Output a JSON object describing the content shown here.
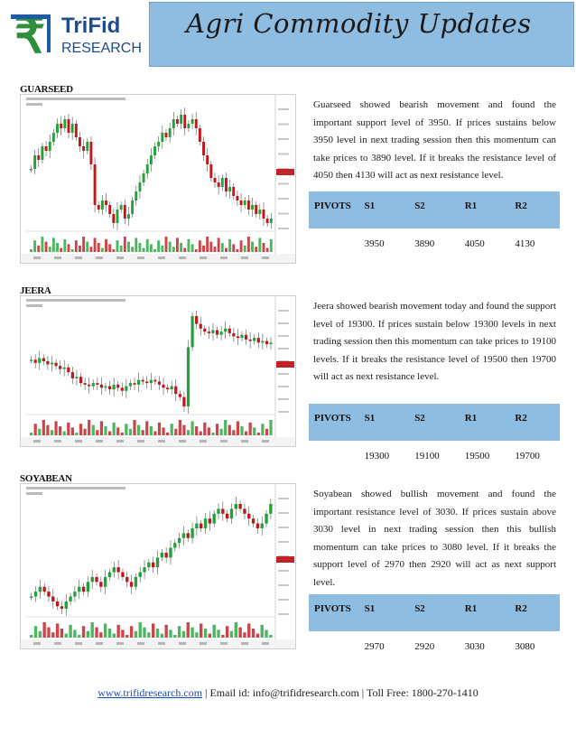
{
  "header": {
    "logo_name": "TriFid",
    "logo_sub": "RESEARCH",
    "logo_symbol": "₹",
    "title": "Agri Commodity Updates"
  },
  "colors": {
    "banner": "#8fbde2",
    "up_candle": "#22a33a",
    "down_candle": "#c0161c",
    "logo_green": "#2f8f3a"
  },
  "sections": [
    {
      "label": "GUARSEED",
      "description": "Guarseed showed bearish movement and found the important support level of 3950. If prices sustains below 3950 level in next trading session then this momentum can take prices to 3890 level. If it breaks the resistance level of 4050 then 4130 will act as next resistance level.",
      "pivots": {
        "headers": [
          "PIVOTS",
          "S1",
          "S2",
          "R1",
          "R2"
        ],
        "values": [
          "",
          "3950",
          "3890",
          "4050",
          "4130"
        ]
      },
      "trend": [
        3950,
        3980,
        3970,
        4000,
        3990,
        4010,
        4030,
        4050,
        4040,
        4060,
        4030,
        4050,
        4020,
        4000,
        3990,
        4010,
        3960,
        3870,
        3860,
        3880,
        3870,
        3850,
        3830,
        3860,
        3870,
        3840,
        3850,
        3880,
        3900,
        3920,
        3940,
        3960,
        3980,
        4000,
        4010,
        4030,
        4020,
        4040,
        4060,
        4050,
        4070,
        4040,
        4050,
        4060,
        4040,
        4010,
        3980,
        3960,
        3930,
        3920,
        3910,
        3930,
        3900,
        3910,
        3890,
        3880,
        3870,
        3880,
        3860,
        3870,
        3850,
        3860,
        3840,
        3830,
        3840
      ]
    },
    {
      "label": "JEERA",
      "description": "Jeera showed bearish movement today and found the support level of 19300. If prices sustain below 19300 levels in next trading session then this momentum can take prices to 19100 levels. If it breaks the resistance level of 19500 then 19700 will act as next resistance level.",
      "pivots": {
        "headers": [
          "PIVOTS",
          "S1",
          "S2",
          "R1",
          "R2"
        ],
        "values": [
          "",
          "19300",
          "19100",
          "19500",
          "19700"
        ]
      },
      "trend": [
        19420,
        19400,
        19430,
        19410,
        19390,
        19400,
        19380,
        19360,
        19370,
        19340,
        19300,
        19310,
        19270,
        19260,
        19250,
        19270,
        19260,
        19240,
        19250,
        19230,
        19260,
        19240,
        19220,
        19250,
        19270,
        19260,
        19290,
        19280,
        19270,
        19290,
        19280,
        19260,
        19240,
        19230,
        19250,
        19200,
        19180,
        19120,
        19500,
        19700,
        19650,
        19620,
        19600,
        19590,
        19610,
        19580,
        19600,
        19620,
        19590,
        19570,
        19560,
        19580,
        19550,
        19540,
        19560,
        19530,
        19540,
        19520,
        19530
      ]
    },
    {
      "label": "SOYABEAN",
      "description": "Soyabean showed bullish movement and found the important resistance level of 3030. If prices sustain above 3030 level in next trading session then this bullish momentum can take prices to 3080 level. If it breaks the support level of 2970 then 2920 will act as next support level.",
      "pivots": {
        "headers": [
          "PIVOTS",
          "S1",
          "S2",
          "R1",
          "R2"
        ],
        "values": [
          "",
          "2970",
          "2920",
          "3030",
          "3080"
        ]
      },
      "trend": [
        2860,
        2870,
        2880,
        2870,
        2860,
        2850,
        2840,
        2835,
        2850,
        2860,
        2870,
        2880,
        2870,
        2890,
        2900,
        2890,
        2880,
        2900,
        2910,
        2920,
        2910,
        2900,
        2890,
        2880,
        2900,
        2910,
        2920,
        2930,
        2920,
        2940,
        2950,
        2940,
        2960,
        2970,
        2980,
        2990,
        2980,
        3000,
        3010,
        3000,
        3020,
        3010,
        3030,
        3040,
        3030,
        3020,
        3040,
        3050,
        3040,
        3030,
        3020,
        3010,
        3000,
        3010,
        3030,
        3050
      ]
    }
  ],
  "footer": {
    "website": "www.trifidresearch.com",
    "contact": " | Email id: info@trifidresearch.com | Toll Free: 1800-270-1410"
  }
}
